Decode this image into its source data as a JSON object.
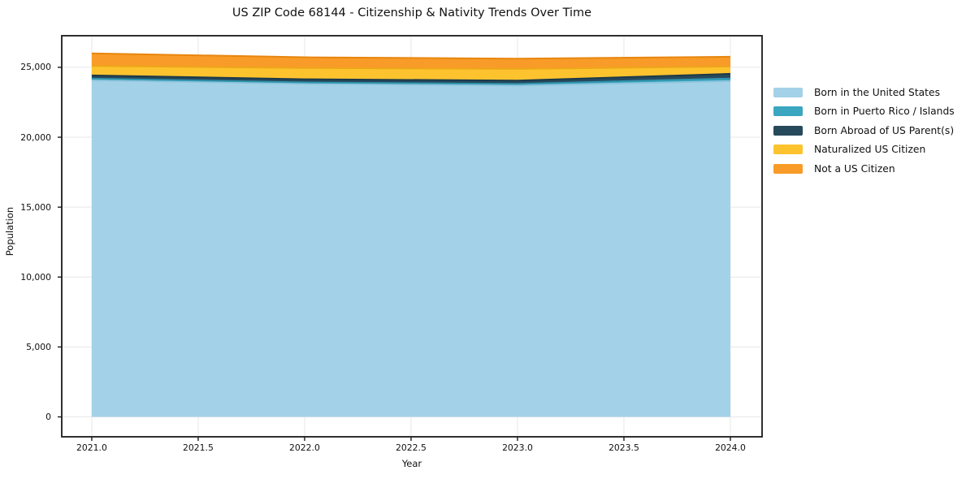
{
  "figure": {
    "background": "#ffffff",
    "axis_color": "#1a1a1a",
    "grid_color": "#e7e7e7"
  },
  "chart_data": {
    "type": "area",
    "stacked": true,
    "title": "US ZIP Code 68144 - Citizenship & Nativity Trends Over Time",
    "xlabel": "Year",
    "ylabel": "Population",
    "x": [
      2021,
      2022,
      2023,
      2024
    ],
    "series": [
      {
        "name": "Born in the United States",
        "color": "#a3d2e8",
        "edge": "#8ec4dd",
        "values": [
          24070,
          23820,
          23700,
          24010
        ]
      },
      {
        "name": "Born in Puerto Rico / Islands",
        "color": "#3aa6c0",
        "edge": "#2f94ad",
        "values": [
          120,
          100,
          115,
          190
        ]
      },
      {
        "name": "Born Abroad of US Parent(s)",
        "color": "#27495c",
        "edge": "#1d3a4a",
        "values": [
          230,
          230,
          235,
          335
        ]
      },
      {
        "name": "Naturalized US Citizen",
        "color": "#fdc32f",
        "edge": "#eda719",
        "values": [
          680,
          800,
          835,
          525
        ]
      },
      {
        "name": "Not a US Citizen",
        "color": "#f89b28",
        "edge": "#e8860f",
        "values": [
          900,
          770,
          735,
          695
        ]
      }
    ],
    "stacked_totals": [
      26000,
      25720,
      25620,
      25755
    ],
    "x_ticks": [
      {
        "value": 2021.0,
        "label": "2021.0"
      },
      {
        "value": 2021.5,
        "label": "2021.5"
      },
      {
        "value": 2022.0,
        "label": "2022.0"
      },
      {
        "value": 2022.5,
        "label": "2022.5"
      },
      {
        "value": 2023.0,
        "label": "2023.0"
      },
      {
        "value": 2023.5,
        "label": "2023.5"
      },
      {
        "value": 2024.0,
        "label": "2024.0"
      }
    ],
    "y_ticks": [
      {
        "value": 0,
        "label": "0"
      },
      {
        "value": 5000,
        "label": "5,000"
      },
      {
        "value": 10000,
        "label": "10,000"
      },
      {
        "value": 15000,
        "label": "15,000"
      },
      {
        "value": 20000,
        "label": "20,000"
      },
      {
        "value": 25000,
        "label": "25,000"
      }
    ],
    "xlim": [
      2020.859,
      2024.149
    ],
    "ylim": [
      -1423,
      27260
    ],
    "grid": true,
    "legend_position": "right"
  }
}
